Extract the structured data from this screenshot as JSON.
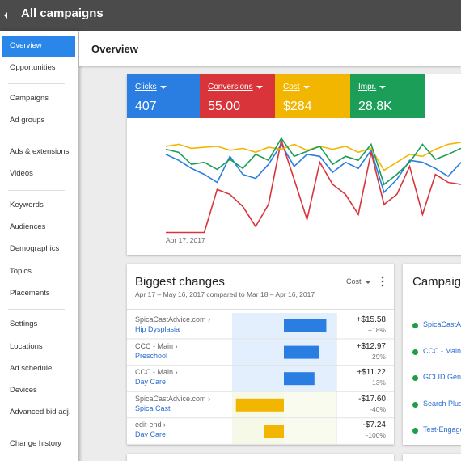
{
  "header": {
    "title": "All campaigns"
  },
  "sidebar": {
    "items": [
      "Overview",
      "Opportunities",
      "Campaigns",
      "Ad groups",
      "Ads & extensions",
      "Videos",
      "Keywords",
      "Audiences",
      "Demographics",
      "Topics",
      "Placements",
      "Settings",
      "Locations",
      "Ad schedule",
      "Devices",
      "Advanced bid adj.",
      "Change history"
    ]
  },
  "page": {
    "title": "Overview"
  },
  "overview": {
    "chart": {
      "type": "line",
      "ylim": [
        0,
        100
      ],
      "date_label": "Apr 17, 2017",
      "series": [
        {
          "name": "Clicks",
          "total": "407",
          "color": "#2a7de1",
          "values": [
            80,
            74,
            66,
            60,
            52,
            78,
            60,
            56,
            70,
            90,
            68,
            80,
            78,
            62,
            72,
            66,
            84,
            42,
            55,
            74,
            72,
            66,
            58,
            72
          ]
        },
        {
          "name": "Conversions",
          "total": "55.00",
          "color": "#d9343a",
          "values": [
            2,
            2,
            2,
            2,
            45,
            40,
            28,
            8,
            30,
            94,
            55,
            15,
            72,
            50,
            40,
            20,
            82,
            30,
            40,
            68,
            20,
            60,
            52,
            50
          ]
        },
        {
          "name": "Cost",
          "total": "$284",
          "color": "#f2b600",
          "values": [
            88,
            90,
            86,
            87,
            88,
            84,
            86,
            82,
            87,
            85,
            90,
            84,
            88,
            85,
            88,
            82,
            86,
            64,
            72,
            80,
            78,
            85,
            90,
            92
          ]
        },
        {
          "name": "Impr.",
          "total": "28.8K",
          "color": "#1a9e58",
          "values": [
            85,
            82,
            70,
            72,
            65,
            75,
            66,
            80,
            74,
            96,
            78,
            83,
            88,
            70,
            78,
            74,
            90,
            50,
            60,
            72,
            90,
            75,
            80,
            86
          ]
        }
      ]
    }
  },
  "biggest_changes": {
    "title": "Biggest changes",
    "subtitle": "Apr 17 – May 16, 2017 compared to Mar 18 – Apr 16, 2017",
    "metric": "Cost",
    "xlim": [
      -19,
      19
    ],
    "rows": [
      {
        "account": "SpicaCastAdvice.com ›",
        "campaign": "Hip Dysplasia",
        "value": 15.58,
        "value_label": "+$15.58",
        "pct": "+18%"
      },
      {
        "account": "CCC - Main ›",
        "campaign": "Preschool",
        "value": 12.97,
        "value_label": "+$12.97",
        "pct": "+29%"
      },
      {
        "account": "CCC - Main ›",
        "campaign": "Day Care",
        "value": 11.22,
        "value_label": "+$11.22",
        "pct": "+13%"
      },
      {
        "account": "SpicaCastAdvice.com ›",
        "campaign": "Spica Cast",
        "value": -17.6,
        "value_label": "-$17.60",
        "pct": "-40%"
      },
      {
        "account": "edit-end ›",
        "campaign": "Day Care",
        "value": -7.24,
        "value_label": "-$7.24",
        "pct": "-100%"
      }
    ]
  },
  "campaigns": {
    "title": "Campaigns",
    "items": [
      "SpicaCastAdvice.com",
      "CCC - Main",
      "GCLID Generator",
      "Search Plus",
      "Test-Engagement"
    ]
  }
}
